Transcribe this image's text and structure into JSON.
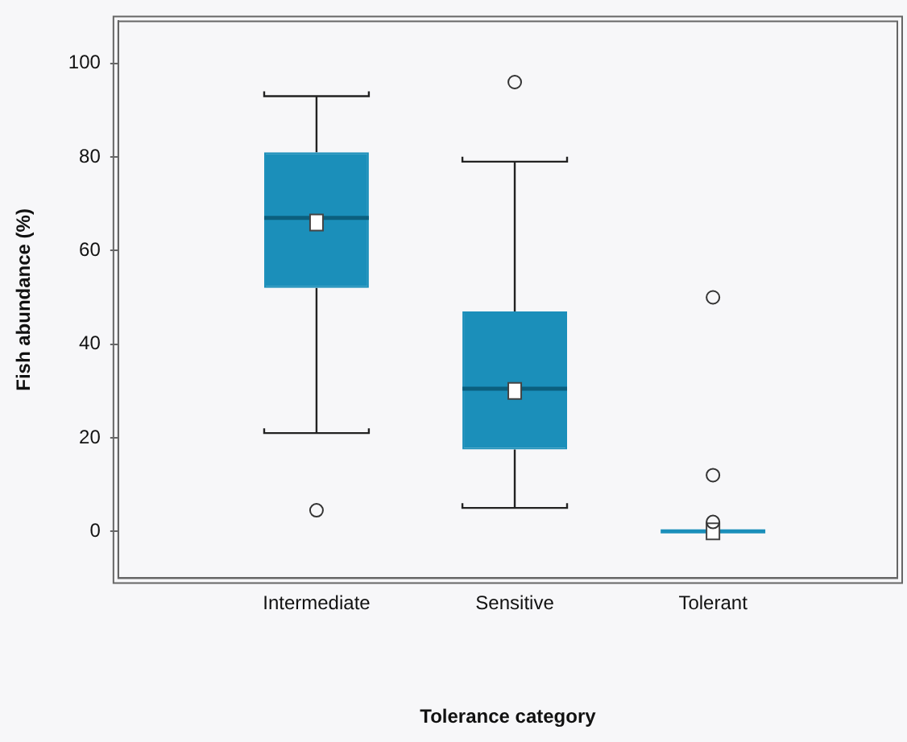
{
  "chart_data": {
    "type": "box",
    "xlabel": "Tolerance category",
    "ylabel": "Fish abundance (%)",
    "categories": [
      "Intermediate",
      "Sensitive",
      "Tolerant"
    ],
    "series": [
      {
        "color": "#1b8fba",
        "boxes": [
          {
            "low": 21,
            "q1": 52,
            "median": 67,
            "q3": 81,
            "high": 93,
            "mean": 66,
            "outliers": [
              4.5
            ]
          },
          {
            "low": 5,
            "q1": 17.5,
            "median": 30.5,
            "q3": 47,
            "high": 79,
            "mean": 30,
            "outliers": [
              96
            ]
          },
          {
            "low": 0,
            "q1": 0,
            "median": 0,
            "q3": 0,
            "high": 0,
            "mean": 0,
            "outliers": [
              50,
              12,
              2
            ]
          }
        ]
      }
    ],
    "ylim": [
      -10,
      109
    ],
    "yticks": [
      0,
      20,
      40,
      60,
      80,
      100
    ],
    "grid": false,
    "legend": false
  }
}
